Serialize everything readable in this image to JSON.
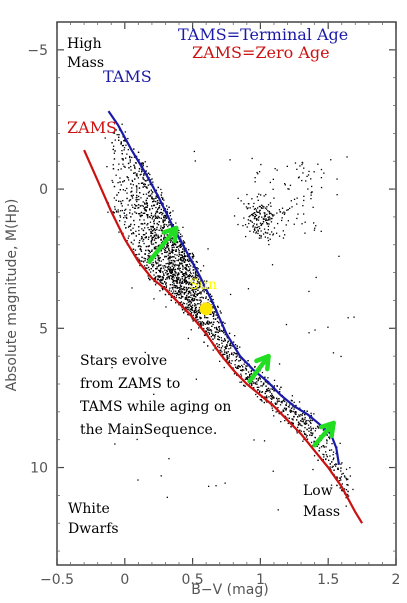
{
  "chart_data": {
    "type": "scatter",
    "xlabel": "B−V (mag)",
    "ylabel": "Absolute magnitude, M(Hp)",
    "xlim": [
      -0.5,
      2.0
    ],
    "ylim": [
      13.5,
      -6.0
    ],
    "y_inverted": true,
    "x_ticks": [
      -0.5,
      0,
      0.5,
      1,
      1.5,
      2
    ],
    "x_tick_labels": [
      "−0.5",
      "0",
      "0.5",
      "1",
      "1.5",
      "2"
    ],
    "y_ticks": [
      -5,
      0,
      5,
      10
    ],
    "y_tick_labels": [
      "−5",
      "0",
      "5",
      "10"
    ],
    "grid": false,
    "series": [
      {
        "name": "TAMS",
        "color": "#1a1aa8",
        "x": [
          -0.12,
          -0.05,
          0.05,
          0.15,
          0.25,
          0.35,
          0.45,
          0.55,
          0.65,
          0.75,
          0.85,
          0.95,
          1.05,
          1.15,
          1.25,
          1.35,
          1.45,
          1.52,
          1.56,
          1.58
        ],
        "y": [
          -2.8,
          -2.3,
          -1.4,
          -0.6,
          0.3,
          1.3,
          2.2,
          3.1,
          4.1,
          5.2,
          6.0,
          6.5,
          6.9,
          7.4,
          7.8,
          8.1,
          8.5,
          8.8,
          9.3,
          9.9
        ]
      },
      {
        "name": "ZAMS",
        "color": "#cc1111",
        "x": [
          -0.3,
          -0.2,
          -0.1,
          0.0,
          0.1,
          0.2,
          0.3,
          0.4,
          0.5,
          0.6,
          0.7,
          0.8,
          0.9,
          1.0,
          1.1,
          1.2,
          1.3,
          1.4,
          1.5,
          1.6,
          1.7,
          1.75
        ],
        "y": [
          -1.4,
          -0.3,
          0.8,
          1.8,
          2.6,
          3.2,
          3.6,
          4.1,
          4.6,
          5.2,
          5.9,
          6.5,
          7.0,
          7.4,
          7.8,
          8.3,
          8.8,
          9.4,
          10.0,
          10.7,
          11.6,
          12.0
        ]
      }
    ],
    "sun": {
      "x": 0.6,
      "y": 4.3,
      "label": "Sun"
    },
    "evolution_arrows": [
      {
        "x1": 0.18,
        "y1": 2.6,
        "x2": 0.38,
        "y2": 1.4
      },
      {
        "x1": 0.92,
        "y1": 6.9,
        "x2": 1.06,
        "y2": 6.0
      },
      {
        "x1": 1.4,
        "y1": 9.2,
        "x2": 1.54,
        "y2": 8.4
      }
    ],
    "scatter_description_color": "#000000"
  },
  "annotations": {
    "tams_def": "TAMS=Terminal Age",
    "zams_def": "ZAMS=Zero Age",
    "high_mass_1": "High",
    "high_mass_2": "Mass",
    "tams_label": "TAMS",
    "zams_label": "ZAMS",
    "evolve_1": "Stars evolve",
    "evolve_2": "from ZAMS to",
    "evolve_3": "TAMS while aging on",
    "evolve_4": "the MainSequence.",
    "white_1": "White",
    "white_2": "Dwarfs",
    "low_1": "Low",
    "low_2": "Mass"
  },
  "colors": {
    "tams": "#1a1aa8",
    "zams": "#cc1111",
    "arrow": "#22dd22",
    "sun": "#ffe600",
    "axes": "#444444"
  }
}
